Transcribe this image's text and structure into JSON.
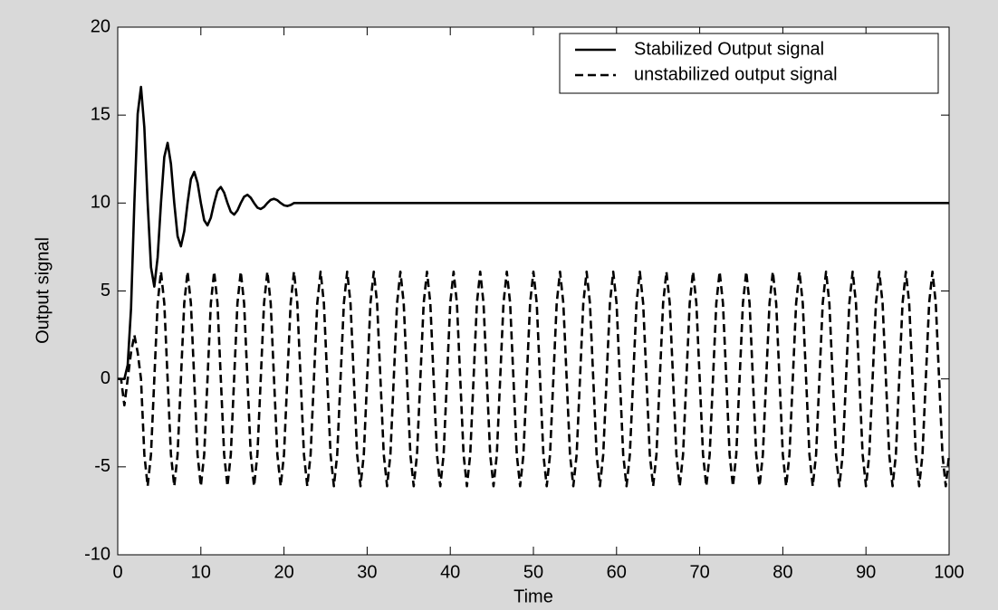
{
  "chart_data": {
    "type": "line",
    "xlabel": "Time",
    "ylabel": "Output signal",
    "xlim": [
      0,
      100
    ],
    "xticks": [
      0,
      10,
      20,
      30,
      40,
      50,
      60,
      70,
      80,
      90,
      100
    ],
    "ylim": [
      -10,
      20
    ],
    "yticks": [
      -10,
      -5,
      0,
      5,
      10,
      15,
      20
    ],
    "grid": false,
    "legend": "upper right",
    "x": [
      0,
      0.4,
      0.8,
      1.2,
      1.6,
      2,
      2.4,
      2.8,
      3.2,
      3.6,
      4,
      4.4,
      4.8,
      5.2,
      5.6,
      6,
      6.4,
      6.8,
      7.2,
      7.6,
      8,
      8.4,
      8.8,
      9.2,
      9.6,
      10,
      10.4,
      10.8,
      11.2,
      11.6,
      12,
      12.4,
      12.8,
      13.2,
      13.6,
      14,
      14.4,
      14.8,
      15.2,
      15.6,
      16,
      16.4,
      16.8,
      17.2,
      17.6,
      18,
      18.4,
      18.8,
      19.2,
      19.6,
      20,
      20.4,
      20.8,
      21.2,
      21.6,
      22,
      22.4,
      22.8,
      23.2,
      23.6,
      24,
      24.4,
      24.8,
      25.2,
      25.6,
      26,
      26.4,
      26.8,
      27.2,
      27.6,
      28,
      28.4,
      28.8,
      29.2,
      29.6,
      30,
      30.4,
      30.8,
      31.2,
      31.6,
      32,
      32.4,
      32.8,
      33.2,
      33.6,
      34,
      34.4,
      34.8,
      35.2,
      35.6,
      36,
      36.4,
      36.8,
      37.2,
      37.6,
      38,
      38.4,
      38.8,
      39.2,
      39.6,
      40,
      40.4,
      40.8,
      41.2,
      41.6,
      42,
      42.4,
      42.8,
      43.2,
      43.6,
      44,
      44.4,
      44.8,
      45.2,
      45.6,
      46,
      46.4,
      46.8,
      47.2,
      47.6,
      48,
      48.4,
      48.8,
      49.2,
      49.6,
      50,
      50.4,
      50.8,
      51.2,
      51.6,
      52,
      52.4,
      52.8,
      53.2,
      53.6,
      54,
      54.4,
      54.8,
      55.2,
      55.6,
      56,
      56.4,
      56.8,
      57.2,
      57.6,
      58,
      58.4,
      58.8,
      59.2,
      59.6,
      60,
      60.4,
      60.8,
      61.2,
      61.6,
      62,
      62.4,
      62.8,
      63.2,
      63.6,
      64,
      64.4,
      64.8,
      65.2,
      65.6,
      66,
      66.4,
      66.8,
      67.2,
      67.6,
      68,
      68.4,
      68.8,
      69.2,
      69.6,
      70,
      70.4,
      70.8,
      71.2,
      71.6,
      72,
      72.4,
      72.8,
      73.2,
      73.6,
      74,
      74.4,
      74.8,
      75.2,
      75.6,
      76,
      76.4,
      76.8,
      77.2,
      77.6,
      78,
      78.4,
      78.8,
      79.2,
      79.6,
      80,
      80.4,
      80.8,
      81.2,
      81.6,
      82,
      82.4,
      82.8,
      83.2,
      83.6,
      84,
      84.4,
      84.8,
      85.2,
      85.6,
      86,
      86.4,
      86.8,
      87.2,
      87.6,
      88,
      88.4,
      88.8,
      89.2,
      89.6,
      90,
      90.4,
      90.8,
      91.2,
      91.6,
      92,
      92.4,
      92.8,
      93.2,
      93.6,
      94,
      94.4,
      94.8,
      95.2,
      95.6,
      96,
      96.4,
      96.8,
      97.2,
      97.6,
      98,
      98.4,
      98.8,
      99.2,
      99.6,
      100
    ],
    "series": [
      {
        "name": "Stabilized Output signal",
        "color": "#000000",
        "linestyle": "solid",
        "values": [
          0,
          0,
          0,
          0.8,
          4,
          10,
          15.07,
          16.6,
          14.3,
          10,
          6.35,
          5.25,
          6.91,
          10,
          12.62,
          13.42,
          12.23,
          10,
          8.11,
          7.54,
          8.4,
          10,
          11.36,
          11.77,
          11.15,
          10,
          9.02,
          8.73,
          9.17,
          10,
          10.7,
          10.91,
          10.59,
          10,
          9.5,
          9.34,
          9.58,
          10,
          10.36,
          10.47,
          10.3,
          10,
          9.74,
          9.66,
          9.78,
          10,
          10.18,
          10.24,
          10.16,
          10,
          9.87,
          9.83,
          9.89,
          10,
          10,
          10,
          10,
          10,
          10,
          10,
          10,
          10,
          10,
          10,
          10,
          10,
          10,
          10,
          10,
          10,
          10,
          10,
          10,
          10,
          10,
          10,
          10,
          10,
          10,
          10,
          10,
          10,
          10,
          10,
          10,
          10,
          10,
          10,
          10,
          10,
          10,
          10,
          10,
          10,
          10,
          10,
          10,
          10,
          10,
          10,
          10,
          10,
          10,
          10,
          10,
          10,
          10,
          10,
          10,
          10,
          10,
          10,
          10,
          10,
          10,
          10,
          10,
          10,
          10,
          10,
          10,
          10,
          10,
          10,
          10,
          10,
          10,
          10,
          10,
          10,
          10,
          10,
          10,
          10,
          10,
          10,
          10,
          10,
          10,
          10,
          10,
          10,
          10,
          10,
          10,
          10,
          10,
          10,
          10,
          10,
          10,
          10,
          10,
          10,
          10,
          10,
          10,
          10,
          10,
          10,
          10,
          10,
          10,
          10,
          10,
          10,
          10,
          10,
          10,
          10,
          10,
          10,
          10,
          10,
          10,
          10,
          10,
          10,
          10,
          10,
          10,
          10,
          10,
          10,
          10,
          10,
          10,
          10,
          10,
          10,
          10,
          10,
          10,
          10,
          10,
          10,
          10,
          10,
          10,
          10,
          10,
          10,
          10,
          10,
          10,
          10,
          10,
          10,
          10,
          10,
          10,
          10,
          10,
          10,
          10,
          10,
          10,
          10,
          10,
          10,
          10,
          10,
          10,
          10,
          10,
          10,
          10,
          10,
          10,
          10,
          10,
          10,
          10,
          10,
          10,
          10,
          10,
          10,
          10,
          10,
          10,
          10,
          10,
          10,
          10,
          10,
          10,
          10,
          10,
          10,
          10
        ]
      },
      {
        "name": "unstabilized output signal",
        "color": "#000000",
        "linestyle": "dashed",
        "values": [
          0,
          0,
          -1.5,
          0,
          1.5,
          2.5,
          1.5,
          0,
          -4.3,
          -6.1,
          -4.3,
          0,
          4.3,
          6.1,
          4.3,
          0,
          -4.3,
          -6.1,
          -4.3,
          0,
          4.3,
          6.1,
          4.3,
          0,
          -4.3,
          -6.1,
          -4.3,
          0,
          4.3,
          6.1,
          4.3,
          0,
          -4.3,
          -6.1,
          -4.3,
          0,
          4.3,
          6.1,
          4.3,
          0,
          -4.3,
          -6.1,
          -4.3,
          0,
          4.3,
          6.1,
          4.3,
          0,
          -4.3,
          -6.1,
          -4.3,
          0,
          4.3,
          6.1,
          4.3,
          0,
          -4.3,
          -6.1,
          -4.3,
          0,
          4.3,
          6.1,
          4.3,
          0,
          -4.3,
          -6.1,
          -4.3,
          0,
          4.3,
          6.1,
          4.3,
          0,
          -4.3,
          -6.1,
          -4.3,
          0,
          4.3,
          6.1,
          4.3,
          0,
          -4.3,
          -6.1,
          -4.3,
          0,
          4.3,
          6.1,
          4.3,
          0,
          -4.3,
          -6.1,
          -4.3,
          0,
          4.3,
          6.1,
          4.3,
          0,
          -4.3,
          -6.1,
          -4.3,
          0,
          4.3,
          6.1,
          4.3,
          0,
          -4.3,
          -6.1,
          -4.3,
          0,
          4.3,
          6.1,
          4.3,
          0,
          -4.3,
          -6.1,
          -4.3,
          0,
          4.3,
          6.1,
          4.3,
          0,
          -4.3,
          -6.1,
          -4.3,
          0,
          4.3,
          6.1,
          4.3,
          0,
          -4.3,
          -6.1,
          -4.3,
          0,
          4.3,
          6.1,
          4.3,
          0,
          -4.3,
          -6.1,
          -4.3,
          0,
          4.3,
          6.1,
          4.3,
          0,
          -4.3,
          -6.1,
          -4.3,
          0,
          4.3,
          6.1,
          4.3,
          0,
          -4.3,
          -6.1,
          -4.3,
          0,
          4.3,
          6.1,
          4.3,
          0,
          -4.3,
          -6.1,
          -4.3,
          0,
          4.3,
          6.1,
          4.3,
          0,
          -4.3,
          -6.1,
          -4.3,
          0,
          4.3,
          6.1,
          4.3,
          0,
          -4.3,
          -6.1,
          -4.3,
          0,
          4.3,
          6.1,
          4.3,
          0,
          -4.3,
          -6.1,
          -4.3,
          0,
          4.3,
          6.1,
          4.3,
          0,
          -4.3,
          -6.1,
          -4.3,
          0,
          4.3,
          6.1,
          4.3,
          0,
          -4.3,
          -6.1,
          -4.3,
          0,
          4.3,
          6.1,
          4.3,
          0,
          -4.3,
          -6.1,
          -4.3,
          0,
          4.3,
          6.1,
          4.3,
          0,
          -4.3,
          -6.1,
          -4.3,
          0,
          4.3,
          6.1,
          4.3,
          0,
          -4.3,
          -6.1,
          -4.3,
          0,
          4.3,
          6.1,
          4.3,
          0,
          -4.3,
          -6.1,
          -4.3,
          0,
          4.3,
          6.1,
          4.3,
          0,
          -4.3,
          -6.1,
          -4.3,
          0,
          4.3,
          6.1,
          4.3,
          0,
          -4.3,
          -6.1,
          -4.3
        ]
      }
    ]
  }
}
